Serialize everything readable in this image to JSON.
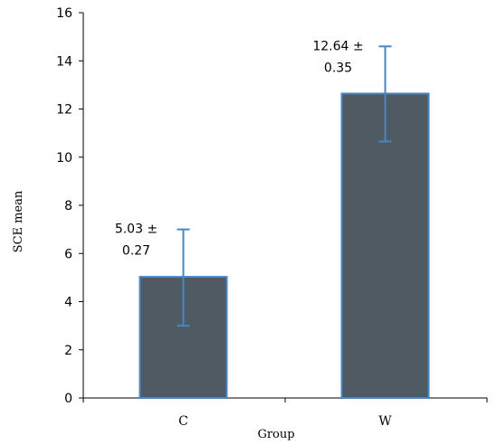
{
  "chart_data": {
    "type": "bar",
    "categories": [
      "C",
      "W"
    ],
    "values": [
      5.03,
      12.64
    ],
    "error_bars": [
      {
        "low": 3.0,
        "high": 7.0
      },
      {
        "low": 10.65,
        "high": 14.6
      }
    ],
    "data_labels": [
      {
        "line1": "5.03 ±",
        "line2": "0.27"
      },
      {
        "line1": "12.64 ±",
        "line2": "0.35"
      }
    ],
    "xlabel": "Group",
    "ylabel": "SCE mean",
    "ylim": [
      0,
      16
    ],
    "yticks": [
      0,
      2,
      4,
      6,
      8,
      10,
      12,
      14,
      16
    ],
    "grid": false,
    "colors": {
      "bar_fill": "#4f5a63",
      "bar_stroke": "#4a86c0",
      "error_bar": "#4a86c0",
      "axis": "#000000"
    }
  }
}
